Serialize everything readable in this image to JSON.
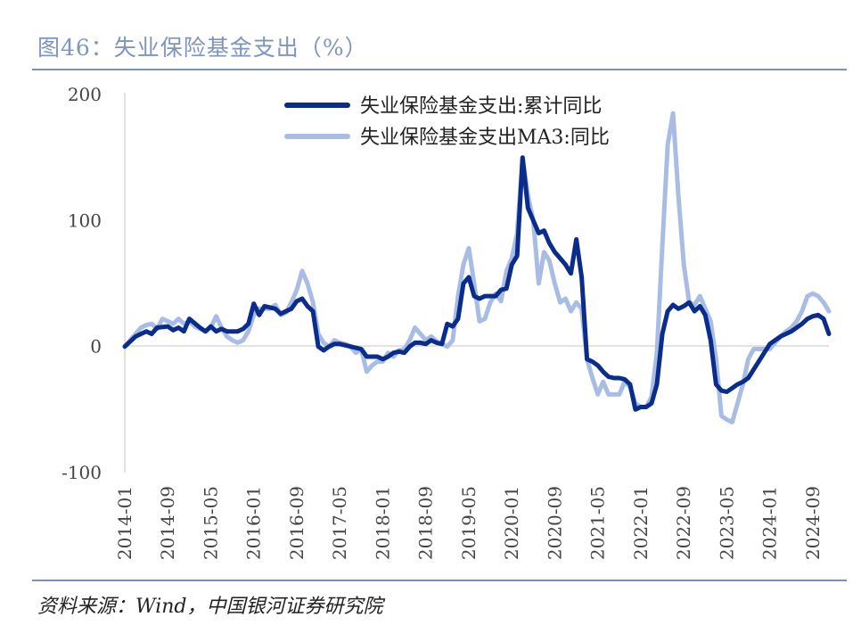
{
  "header": {
    "title": "图46：失业保险基金支出（%）"
  },
  "footer": {
    "source": "资料来源：Wind，中国银河证券研究院"
  },
  "chart_data": {
    "type": "line",
    "title": "",
    "xlabel": "",
    "ylabel": "",
    "ylim": [
      -100,
      200
    ],
    "yticks": [
      200,
      100,
      0,
      -100
    ],
    "xtick_labels": [
      "2014-01",
      "2014-09",
      "2015-05",
      "2016-01",
      "2016-09",
      "2017-05",
      "2018-01",
      "2018-09",
      "2019-05",
      "2020-01",
      "2020-09",
      "2021-05",
      "2022-01",
      "2022-09",
      "2023-05",
      "2024-01",
      "2024-09"
    ],
    "x_start": "2014-01",
    "x_end": "2024-12",
    "legend_position": "top-center",
    "grid": false,
    "series": [
      {
        "name": "失业保险基金支出:累计同比",
        "color": "#0A2C8A",
        "points": [
          [
            "2014-01",
            0
          ],
          [
            "2014-03",
            8
          ],
          [
            "2014-05",
            12
          ],
          [
            "2014-06",
            10
          ],
          [
            "2014-07",
            15
          ],
          [
            "2014-09",
            16
          ],
          [
            "2014-10",
            13
          ],
          [
            "2014-11",
            15
          ],
          [
            "2014-12",
            12
          ],
          [
            "2015-01",
            22
          ],
          [
            "2015-03",
            15
          ],
          [
            "2015-04",
            12
          ],
          [
            "2015-05",
            16
          ],
          [
            "2015-06",
            12
          ],
          [
            "2015-07",
            14
          ],
          [
            "2015-08",
            12
          ],
          [
            "2015-10",
            12
          ],
          [
            "2015-11",
            14
          ],
          [
            "2015-12",
            18
          ],
          [
            "2016-01",
            34
          ],
          [
            "2016-02",
            25
          ],
          [
            "2016-03",
            32
          ],
          [
            "2016-05",
            30
          ],
          [
            "2016-06",
            26
          ],
          [
            "2016-08",
            30
          ],
          [
            "2016-09",
            36
          ],
          [
            "2016-10",
            38
          ],
          [
            "2016-11",
            32
          ],
          [
            "2016-12",
            28
          ],
          [
            "2017-01",
            0
          ],
          [
            "2017-02",
            -3
          ],
          [
            "2017-03",
            0
          ],
          [
            "2017-04",
            2
          ],
          [
            "2017-05",
            2
          ],
          [
            "2017-07",
            0
          ],
          [
            "2017-09",
            -2
          ],
          [
            "2017-10",
            -8
          ],
          [
            "2017-11",
            -8
          ],
          [
            "2017-12",
            -8
          ],
          [
            "2018-01",
            -10
          ],
          [
            "2018-02",
            -8
          ],
          [
            "2018-03",
            -5
          ],
          [
            "2018-04",
            -4
          ],
          [
            "2018-05",
            -5
          ],
          [
            "2018-06",
            0
          ],
          [
            "2018-07",
            3
          ],
          [
            "2018-08",
            3
          ],
          [
            "2018-09",
            2
          ],
          [
            "2018-10",
            5
          ],
          [
            "2018-11",
            3
          ],
          [
            "2018-12",
            2
          ],
          [
            "2019-01",
            18
          ],
          [
            "2019-02",
            16
          ],
          [
            "2019-03",
            22
          ],
          [
            "2019-04",
            50
          ],
          [
            "2019-05",
            55
          ],
          [
            "2019-06",
            40
          ],
          [
            "2019-07",
            38
          ],
          [
            "2019-08",
            40
          ],
          [
            "2019-10",
            40
          ],
          [
            "2019-11",
            45
          ],
          [
            "2019-12",
            46
          ],
          [
            "2020-01",
            65
          ],
          [
            "2020-02",
            72
          ],
          [
            "2020-03",
            150
          ],
          [
            "2020-04",
            110
          ],
          [
            "2020-05",
            100
          ],
          [
            "2020-06",
            90
          ],
          [
            "2020-07",
            92
          ],
          [
            "2020-08",
            82
          ],
          [
            "2020-09",
            75
          ],
          [
            "2020-10",
            70
          ],
          [
            "2020-11",
            65
          ],
          [
            "2020-12",
            58
          ],
          [
            "2021-01",
            85
          ],
          [
            "2021-02",
            55
          ],
          [
            "2021-03",
            -10
          ],
          [
            "2021-04",
            -12
          ],
          [
            "2021-05",
            -15
          ],
          [
            "2021-06",
            -20
          ],
          [
            "2021-07",
            -24
          ],
          [
            "2021-08",
            -25
          ],
          [
            "2021-09",
            -25
          ],
          [
            "2021-10",
            -26
          ],
          [
            "2021-11",
            -30
          ],
          [
            "2021-12",
            -50
          ],
          [
            "2022-01",
            -48
          ],
          [
            "2022-02",
            -48
          ],
          [
            "2022-03",
            -45
          ],
          [
            "2022-04",
            -30
          ],
          [
            "2022-05",
            10
          ],
          [
            "2022-06",
            28
          ],
          [
            "2022-07",
            33
          ],
          [
            "2022-08",
            30
          ],
          [
            "2022-09",
            32
          ],
          [
            "2022-10",
            35
          ],
          [
            "2022-11",
            28
          ],
          [
            "2022-12",
            32
          ],
          [
            "2023-01",
            25
          ],
          [
            "2023-02",
            5
          ],
          [
            "2023-03",
            -30
          ],
          [
            "2023-04",
            -35
          ],
          [
            "2023-05",
            -36
          ],
          [
            "2023-06",
            -33
          ],
          [
            "2023-07",
            -30
          ],
          [
            "2023-08",
            -28
          ],
          [
            "2023-09",
            -25
          ],
          [
            "2024-01",
            2
          ],
          [
            "2024-02",
            5
          ],
          [
            "2024-03",
            8
          ],
          [
            "2024-04",
            10
          ],
          [
            "2024-05",
            12
          ],
          [
            "2024-06",
            15
          ],
          [
            "2024-07",
            18
          ],
          [
            "2024-08",
            22
          ],
          [
            "2024-09",
            24
          ],
          [
            "2024-10",
            25
          ],
          [
            "2024-11",
            22
          ],
          [
            "2024-12",
            10
          ]
        ]
      },
      {
        "name": "失业保险基金支出MA3:同比",
        "color": "#A9BCE3",
        "points": [
          [
            "2014-01",
            0
          ],
          [
            "2014-03",
            10
          ],
          [
            "2014-04",
            15
          ],
          [
            "2014-05",
            17
          ],
          [
            "2014-06",
            18
          ],
          [
            "2014-07",
            14
          ],
          [
            "2014-08",
            22
          ],
          [
            "2014-09",
            20
          ],
          [
            "2014-10",
            18
          ],
          [
            "2014-11",
            22
          ],
          [
            "2014-12",
            18
          ],
          [
            "2015-01",
            20
          ],
          [
            "2015-02",
            16
          ],
          [
            "2015-03",
            14
          ],
          [
            "2015-04",
            12
          ],
          [
            "2015-05",
            15
          ],
          [
            "2015-06",
            24
          ],
          [
            "2015-07",
            15
          ],
          [
            "2015-08",
            8
          ],
          [
            "2015-09",
            5
          ],
          [
            "2015-10",
            3
          ],
          [
            "2015-11",
            5
          ],
          [
            "2015-12",
            12
          ],
          [
            "2016-01",
            25
          ],
          [
            "2016-02",
            30
          ],
          [
            "2016-03",
            30
          ],
          [
            "2016-04",
            30
          ],
          [
            "2016-05",
            33
          ],
          [
            "2016-06",
            25
          ],
          [
            "2016-07",
            27
          ],
          [
            "2016-08",
            35
          ],
          [
            "2016-09",
            45
          ],
          [
            "2016-10",
            60
          ],
          [
            "2016-11",
            50
          ],
          [
            "2016-12",
            35
          ],
          [
            "2017-01",
            10
          ],
          [
            "2017-02",
            3
          ],
          [
            "2017-03",
            0
          ],
          [
            "2017-04",
            5
          ],
          [
            "2017-05",
            3
          ],
          [
            "2017-06",
            2
          ],
          [
            "2017-07",
            0
          ],
          [
            "2017-08",
            -5
          ],
          [
            "2017-09",
            -2
          ],
          [
            "2017-10",
            -20
          ],
          [
            "2017-11",
            -15
          ],
          [
            "2017-12",
            -12
          ],
          [
            "2018-01",
            -12
          ],
          [
            "2018-02",
            -5
          ],
          [
            "2018-03",
            -8
          ],
          [
            "2018-04",
            -3
          ],
          [
            "2018-05",
            -2
          ],
          [
            "2018-06",
            5
          ],
          [
            "2018-07",
            15
          ],
          [
            "2018-08",
            10
          ],
          [
            "2018-09",
            5
          ],
          [
            "2018-10",
            8
          ],
          [
            "2018-11",
            4
          ],
          [
            "2018-12",
            2
          ],
          [
            "2019-01",
            0
          ],
          [
            "2019-02",
            5
          ],
          [
            "2019-03",
            40
          ],
          [
            "2019-04",
            65
          ],
          [
            "2019-05",
            78
          ],
          [
            "2019-06",
            50
          ],
          [
            "2019-07",
            20
          ],
          [
            "2019-08",
            22
          ],
          [
            "2019-09",
            35
          ],
          [
            "2019-10",
            42
          ],
          [
            "2019-11",
            36
          ],
          [
            "2019-12",
            60
          ],
          [
            "2020-01",
            70
          ],
          [
            "2020-02",
            90
          ],
          [
            "2020-03",
            150
          ],
          [
            "2020-04",
            120
          ],
          [
            "2020-05",
            100
          ],
          [
            "2020-06",
            50
          ],
          [
            "2020-07",
            75
          ],
          [
            "2020-08",
            68
          ],
          [
            "2020-09",
            50
          ],
          [
            "2020-10",
            35
          ],
          [
            "2020-11",
            38
          ],
          [
            "2020-12",
            28
          ],
          [
            "2021-01",
            35
          ],
          [
            "2021-02",
            30
          ],
          [
            "2021-03",
            -10
          ],
          [
            "2021-04",
            -25
          ],
          [
            "2021-05",
            -38
          ],
          [
            "2021-06",
            -28
          ],
          [
            "2021-07",
            -38
          ],
          [
            "2021-08",
            -38
          ],
          [
            "2021-09",
            -38
          ],
          [
            "2021-10",
            -28
          ],
          [
            "2021-11",
            -32
          ],
          [
            "2021-12",
            -45
          ],
          [
            "2022-01",
            -48
          ],
          [
            "2022-02",
            -48
          ],
          [
            "2022-03",
            -40
          ],
          [
            "2022-04",
            -5
          ],
          [
            "2022-05",
            80
          ],
          [
            "2022-06",
            160
          ],
          [
            "2022-07",
            185
          ],
          [
            "2022-08",
            120
          ],
          [
            "2022-09",
            65
          ],
          [
            "2022-10",
            35
          ],
          [
            "2022-11",
            33
          ],
          [
            "2022-12",
            40
          ],
          [
            "2023-01",
            30
          ],
          [
            "2023-02",
            20
          ],
          [
            "2023-03",
            -10
          ],
          [
            "2023-04",
            -55
          ],
          [
            "2023-05",
            -58
          ],
          [
            "2023-06",
            -60
          ],
          [
            "2023-07",
            -45
          ],
          [
            "2023-08",
            -30
          ],
          [
            "2023-09",
            -10
          ],
          [
            "2023-10",
            -2
          ],
          [
            "2024-01",
            -2
          ],
          [
            "2024-02",
            3
          ],
          [
            "2024-03",
            8
          ],
          [
            "2024-04",
            12
          ],
          [
            "2024-05",
            15
          ],
          [
            "2024-06",
            20
          ],
          [
            "2024-07",
            28
          ],
          [
            "2024-08",
            40
          ],
          [
            "2024-09",
            42
          ],
          [
            "2024-10",
            40
          ],
          [
            "2024-11",
            35
          ],
          [
            "2024-12",
            28
          ]
        ]
      }
    ]
  }
}
